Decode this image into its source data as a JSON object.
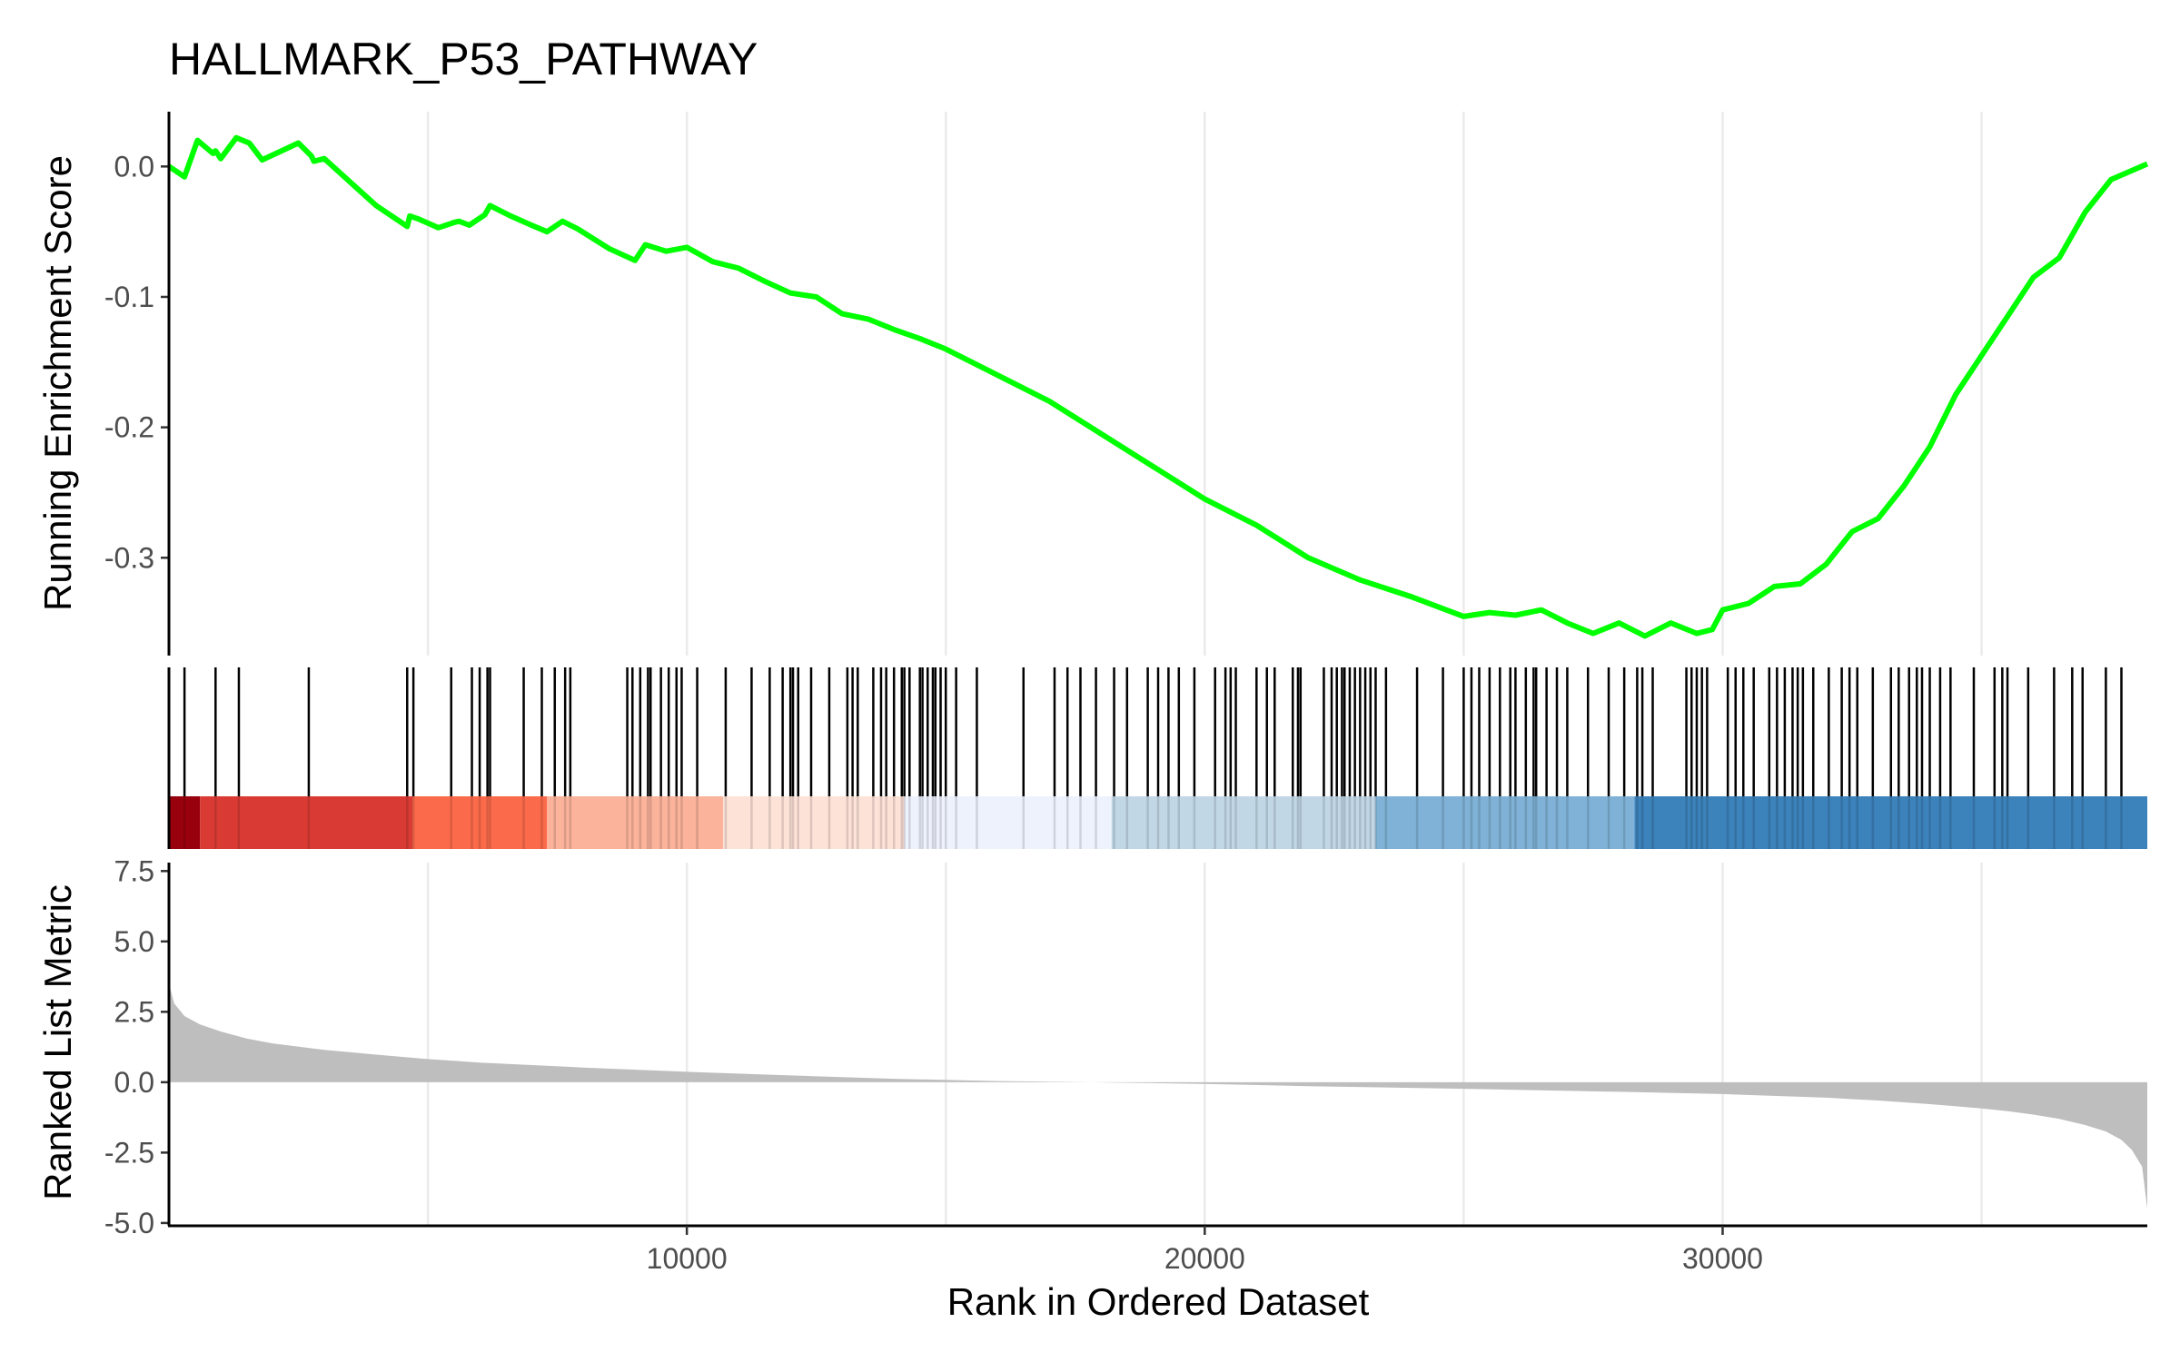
{
  "chart_data": {
    "type": "line",
    "title": "HALLMARK_P53_PATHWAY",
    "colors": {
      "es_line": "#00ff00",
      "hits": "#000000",
      "metric_fill": "#bebebe",
      "grid": "#ebebeb",
      "heat": [
        "#99000d",
        "#cb181d",
        "#ef3b2c",
        "#fb6a4a",
        "#fcbba1",
        "#fee0d2",
        "#eff3ff",
        "#c6dbef",
        "#9ecae1",
        "#6baed6",
        "#2171b5"
      ]
    },
    "x_axis": {
      "label": "Rank in Ordered Dataset",
      "range": [
        0,
        38200
      ],
      "ticks": [
        10000,
        20000,
        30000
      ],
      "tick_labels": [
        "10000",
        "20000",
        "30000"
      ],
      "gridlines": [
        5000,
        10000,
        15000,
        20000,
        25000,
        30000,
        35000
      ]
    },
    "es_panel": {
      "ylabel": "Running Enrichment Score",
      "ylim": [
        -0.375,
        0.042
      ],
      "ticks": [
        0.0,
        -0.1,
        -0.2,
        -0.3
      ],
      "tick_labels": [
        "0.0",
        "-0.1",
        "-0.2",
        "-0.3"
      ],
      "series": {
        "x": [
          0,
          300,
          550,
          850,
          900,
          1000,
          1300,
          1550,
          1800,
          2500,
          2750,
          2800,
          3000,
          3500,
          4000,
          4600,
          4650,
          4800,
          5200,
          5500,
          5600,
          5800,
          6100,
          6200,
          6600,
          7000,
          7300,
          7600,
          7900,
          8500,
          9000,
          9200,
          9600,
          10000,
          10500,
          11000,
          11500,
          12000,
          12500,
          13000,
          13500,
          14000,
          14500,
          15000,
          16000,
          17000,
          18000,
          19000,
          20000,
          21000,
          22000,
          23000,
          24000,
          25000,
          25500,
          26000,
          26500,
          27000,
          27500,
          28000,
          28500,
          29000,
          29500,
          29800,
          30000,
          30500,
          31000,
          31500,
          32000,
          32500,
          33000,
          33500,
          34000,
          34500,
          35000,
          35500,
          36000,
          36500,
          37000,
          37500,
          38200
        ],
        "y": [
          0.0,
          -0.008,
          0.02,
          0.01,
          0.012,
          0.006,
          0.022,
          0.018,
          0.005,
          0.018,
          0.008,
          0.004,
          0.006,
          -0.012,
          -0.03,
          -0.046,
          -0.038,
          -0.04,
          -0.047,
          -0.043,
          -0.042,
          -0.045,
          -0.037,
          -0.03,
          -0.038,
          -0.045,
          -0.05,
          -0.042,
          -0.048,
          -0.063,
          -0.072,
          -0.06,
          -0.065,
          -0.062,
          -0.073,
          -0.078,
          -0.088,
          -0.097,
          -0.1,
          -0.113,
          -0.117,
          -0.125,
          -0.132,
          -0.14,
          -0.16,
          -0.18,
          -0.205,
          -0.23,
          -0.255,
          -0.275,
          -0.3,
          -0.317,
          -0.33,
          -0.345,
          -0.342,
          -0.344,
          -0.34,
          -0.35,
          -0.358,
          -0.35,
          -0.36,
          -0.35,
          -0.358,
          -0.355,
          -0.34,
          -0.335,
          -0.322,
          -0.32,
          -0.305,
          -0.28,
          -0.27,
          -0.245,
          -0.215,
          -0.175,
          -0.145,
          -0.115,
          -0.085,
          -0.07,
          -0.035,
          -0.01,
          0.002
        ]
      }
    },
    "hits_panel": {
      "hit_positions": [
        0,
        300,
        900,
        1350,
        2700,
        4600,
        4720,
        5450,
        5850,
        6000,
        6150,
        6200,
        6850,
        7200,
        7450,
        7650,
        7750,
        8850,
        8950,
        9100,
        9250,
        9300,
        9500,
        9650,
        9800,
        9900,
        10200,
        10750,
        11250,
        11600,
        11850,
        12000,
        12050,
        12150,
        12400,
        12750,
        13100,
        13200,
        13300,
        13600,
        13750,
        13850,
        14000,
        14150,
        14200,
        14300,
        14500,
        14550,
        14650,
        14750,
        14800,
        14900,
        15000,
        15200,
        15600,
        16500,
        17100,
        17350,
        17600,
        17900,
        18250,
        18500,
        18900,
        19100,
        19300,
        19500,
        19800,
        20200,
        20400,
        20500,
        20600,
        21000,
        21200,
        21350,
        21700,
        21800,
        21850,
        22300,
        22450,
        22550,
        22650,
        22700,
        22800,
        22900,
        23000,
        23100,
        23200,
        23300,
        23500,
        24100,
        24600,
        25000,
        25150,
        25300,
        25500,
        25700,
        25900,
        26000,
        26200,
        26350,
        26400,
        26600,
        26800,
        27000,
        27400,
        27800,
        28100,
        28350,
        28450,
        28650,
        29300,
        29400,
        29500,
        29600,
        29700,
        30100,
        30250,
        30400,
        30600,
        30900,
        31050,
        31200,
        31350,
        31450,
        31550,
        31750,
        32050,
        32300,
        32450,
        32600,
        32900,
        33250,
        33400,
        33600,
        33750,
        33850,
        34000,
        34200,
        34400,
        34850,
        35250,
        35400,
        35500,
        35900,
        36400,
        36750,
        36950,
        37400,
        37700
      ],
      "heat_segments": [
        {
          "from": 0,
          "to": 600,
          "color": "#99000d"
        },
        {
          "from": 600,
          "to": 4700,
          "color": "#d93b34"
        },
        {
          "from": 4700,
          "to": 7300,
          "color": "#fb6a4a"
        },
        {
          "from": 7300,
          "to": 10700,
          "color": "#fbb39b"
        },
        {
          "from": 10700,
          "to": 14200,
          "color": "#fde2d8"
        },
        {
          "from": 14200,
          "to": 18200,
          "color": "#eef2fd"
        },
        {
          "from": 18200,
          "to": 23300,
          "color": "#c2d7e6"
        },
        {
          "from": 23300,
          "to": 28300,
          "color": "#7fb2d6"
        },
        {
          "from": 28300,
          "to": 38200,
          "color": "#3c82bb"
        }
      ]
    },
    "metric_panel": {
      "ylabel": "Ranked List Metric",
      "ylim": [
        -5.1,
        7.8
      ],
      "ticks": [
        7.5,
        5.0,
        2.5,
        0.0,
        -2.5,
        -5.0
      ],
      "tick_labels": [
        "7.5",
        "5.0",
        "2.5",
        "0.0",
        "-2.5",
        "-5.0"
      ],
      "series": {
        "x": [
          0,
          100,
          300,
          600,
          1000,
          1500,
          2000,
          3000,
          4000,
          5000,
          6000,
          8000,
          10000,
          12000,
          14000,
          16000,
          17800,
          18200,
          20000,
          22000,
          24000,
          26000,
          28000,
          30000,
          32000,
          33000,
          34000,
          35000,
          35500,
          36000,
          36500,
          37000,
          37400,
          37700,
          37900,
          38100,
          38200
        ],
        "y": [
          3.5,
          2.8,
          2.35,
          2.05,
          1.8,
          1.55,
          1.38,
          1.15,
          0.98,
          0.82,
          0.7,
          0.52,
          0.37,
          0.24,
          0.12,
          0.04,
          0.0,
          -0.01,
          -0.06,
          -0.14,
          -0.2,
          -0.27,
          -0.34,
          -0.42,
          -0.55,
          -0.65,
          -0.78,
          -0.93,
          -1.03,
          -1.15,
          -1.3,
          -1.52,
          -1.75,
          -2.05,
          -2.4,
          -3.0,
          -4.5
        ]
      }
    }
  }
}
